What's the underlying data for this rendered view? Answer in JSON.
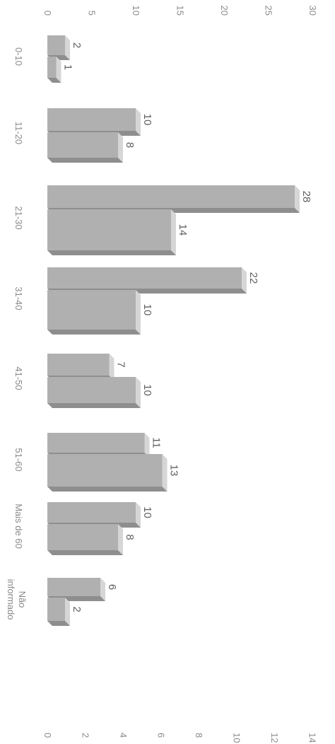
{
  "chart_data": {
    "type": "bar",
    "orientation": "rotated 90° (values run bottom-to-top, categories run left-to-right)",
    "categories": [
      "0-10",
      "11-20",
      "21-30",
      "31-40",
      "41-50",
      "51-60",
      "Mais de 60",
      "Não informado"
    ],
    "series": [
      {
        "values": [
          2,
          10,
          28,
          22,
          7,
          11,
          10,
          6
        ]
      },
      {
        "values": [
          1,
          8,
          14,
          10,
          10,
          13,
          8,
          2
        ]
      }
    ],
    "axes": {
      "primary": {
        "ticks": [
          "0",
          "5",
          "10",
          "15",
          "20",
          "25",
          "30"
        ],
        "range": [
          0,
          30
        ],
        "position": "left"
      },
      "secondary": {
        "ticks": [
          "0",
          "2",
          "4",
          "6",
          "8",
          "10",
          "12",
          "14"
        ],
        "range": [
          0,
          14
        ],
        "position": "right"
      }
    },
    "bar_color": "#b0b0b0",
    "bar_top_color": "#d6d6d6",
    "bar_side_color": "#8e8e8e",
    "grid": false,
    "legend": "none",
    "style": "3D columns"
  }
}
